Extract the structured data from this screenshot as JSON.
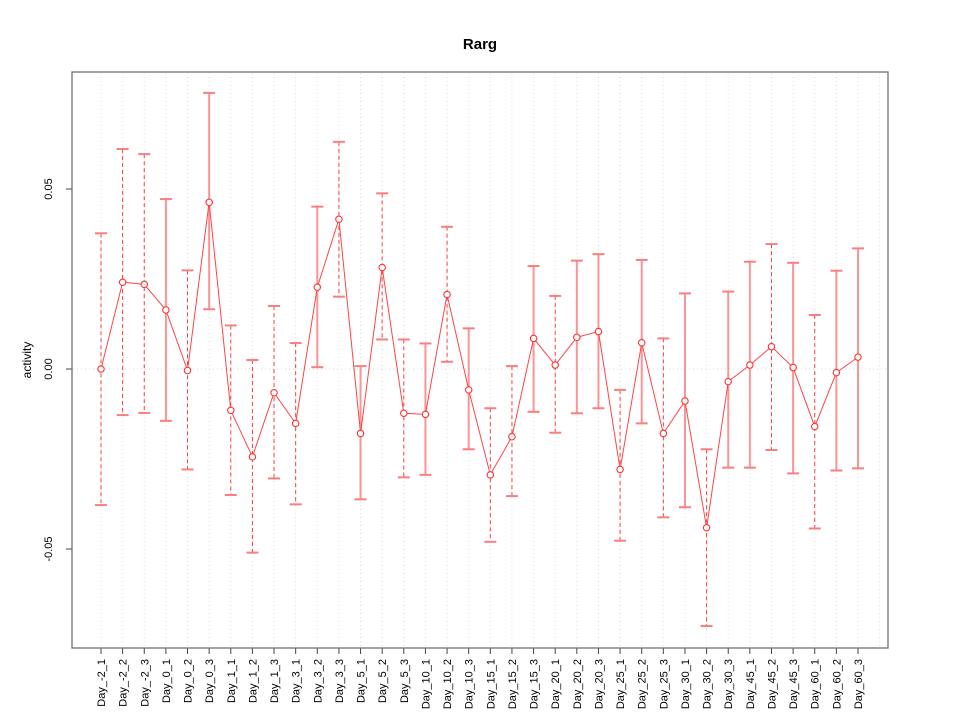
{
  "chart_data": {
    "type": "line",
    "title": "Rarg",
    "ylabel": "activity",
    "xlabel": "",
    "legend": "none",
    "grid": "vertical dotted gridlines at each category plus dotted zero line",
    "ylim": [
      -0.078,
      0.082
    ],
    "yticks": [
      0.05,
      0.0,
      -0.05
    ],
    "ytick_labels": [
      "0.05",
      "0.00",
      "-0.05"
    ],
    "colors": {
      "point": "#ff3333",
      "series_line": "#ff4444",
      "bar_dashed": "#ff3b3b",
      "bar_solid": "#fb9494",
      "cap": "#f87f7f",
      "grid": "#dcdcdc",
      "zero_line": "#d4d4d4",
      "frame": "#666666",
      "tick": "#444444",
      "text": "#000000"
    },
    "categories": [
      "Day_-2_1",
      "Day_-2_2",
      "Day_-2_3",
      "Day_0_1",
      "Day_0_2",
      "Day_0_3",
      "Day_1_1",
      "Day_1_2",
      "Day_1_3",
      "Day_3_1",
      "Day_3_2",
      "Day_3_3",
      "Day_5_1",
      "Day_5_2",
      "Day_5_3",
      "Day_10_1",
      "Day_10_2",
      "Day_10_3",
      "Day_15_1",
      "Day_15_2",
      "Day_15_3",
      "Day_20_1",
      "Day_20_2",
      "Day_20_3",
      "Day_25_1",
      "Day_25_2",
      "Day_25_3",
      "Day_30_1",
      "Day_30_2",
      "Day_30_3",
      "Day_45_1",
      "Day_45_2",
      "Day_45_3",
      "Day_60_1",
      "Day_60_2",
      "Day_60_3"
    ],
    "series": [
      {
        "name": "activity",
        "values": [
          0.0,
          0.0241,
          0.0235,
          0.0164,
          -0.0004,
          0.0463,
          -0.0115,
          -0.0244,
          -0.0066,
          -0.0151,
          0.0227,
          0.0416,
          -0.0179,
          0.0282,
          -0.0123,
          -0.0126,
          0.0207,
          -0.0058,
          -0.0294,
          -0.0188,
          0.0085,
          0.0011,
          0.0088,
          0.0104,
          -0.0279,
          0.0073,
          -0.0179,
          -0.0089,
          -0.0441,
          -0.0035,
          0.0011,
          0.0062,
          0.0004,
          -0.016,
          -0.001,
          0.0033
        ],
        "upper": [
          0.0377,
          0.0611,
          0.0597,
          0.0472,
          0.0274,
          0.0767,
          0.0121,
          0.0025,
          0.0175,
          0.0072,
          0.0451,
          0.0631,
          0.0008,
          0.0488,
          0.0082,
          0.0071,
          0.0395,
          0.0113,
          -0.0109,
          0.0008,
          0.0286,
          0.0203,
          0.0301,
          0.0319,
          -0.0058,
          0.0303,
          0.0085,
          0.021,
          -0.0223,
          0.0215,
          0.0298,
          0.0347,
          0.0295,
          0.015,
          0.0273,
          0.0335
        ],
        "lower": [
          -0.0378,
          -0.0128,
          -0.0122,
          -0.0144,
          -0.0279,
          0.0166,
          -0.035,
          -0.051,
          -0.0304,
          -0.0376,
          0.0005,
          0.0201,
          -0.0362,
          0.0082,
          -0.0301,
          -0.0294,
          0.002,
          -0.0223,
          -0.048,
          -0.0353,
          -0.0119,
          -0.0177,
          -0.0123,
          -0.0109,
          -0.0477,
          -0.0151,
          -0.0412,
          -0.0384,
          -0.0714,
          -0.0274,
          -0.0274,
          -0.0225,
          -0.029,
          -0.0443,
          -0.0282,
          -0.0276
        ],
        "bar_styles": [
          "dashed",
          "dashed",
          "dashed",
          "solid",
          "dashed",
          "solid",
          "dashed",
          "dashed",
          "dashed",
          "dashed",
          "solid",
          "dashed",
          "solid",
          "dashed",
          "dashed",
          "solid",
          "dashed",
          "solid",
          "dashed",
          "dashed",
          "solid",
          "dashed",
          "solid",
          "solid",
          "dashed",
          "solid",
          "dashed",
          "solid",
          "dashed",
          "solid",
          "solid",
          "dashed",
          "solid",
          "dashed",
          "solid",
          "solid"
        ]
      }
    ]
  }
}
